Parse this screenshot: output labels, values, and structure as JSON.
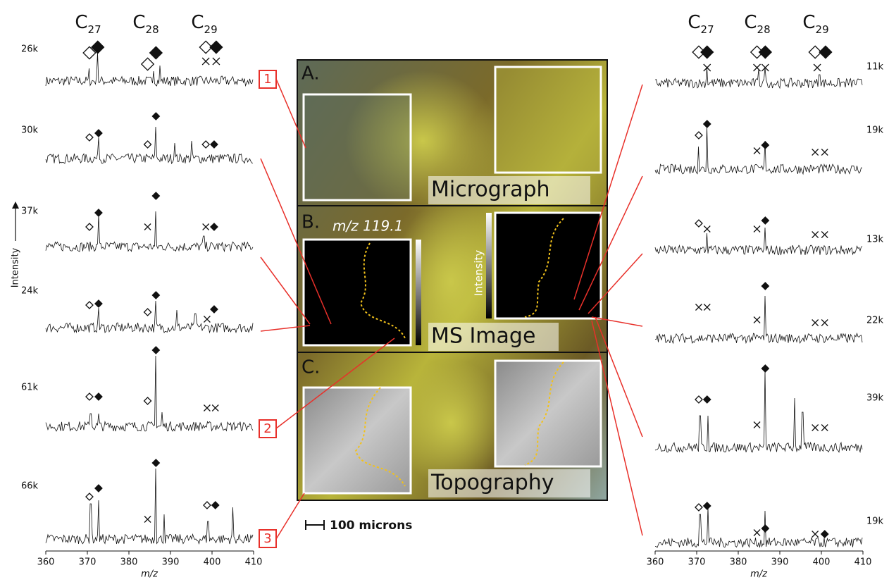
{
  "column_headers": [
    {
      "letter": "C",
      "sub": "27"
    },
    {
      "letter": "C",
      "sub": "28"
    },
    {
      "letter": "C",
      "sub": "29"
    }
  ],
  "left_panel": {
    "intensity_labels": [
      "26k",
      "30k",
      "37k",
      "24k",
      "61k",
      "66k"
    ],
    "y_label": "Intensity",
    "x_label": "m/z",
    "x_ticks": [
      360,
      370,
      380,
      390,
      400,
      410
    ]
  },
  "right_panel": {
    "intensity_labels": [
      "11k",
      "19k",
      "13k",
      "22k",
      "39k",
      "19k"
    ],
    "x_label": "m/z",
    "x_ticks": [
      360,
      370,
      380,
      390,
      400,
      410
    ]
  },
  "center": {
    "panels": [
      {
        "letter": "A.",
        "caption": "Micrograph"
      },
      {
        "letter": "B.",
        "caption": "MS Image",
        "ion_label": "m/z 119.1",
        "colorbar_label": "Intensity"
      },
      {
        "letter": "C.",
        "caption": "Topography"
      }
    ],
    "scale_bar": "100 microns"
  },
  "callouts": [
    "1",
    "2",
    "3"
  ]
}
